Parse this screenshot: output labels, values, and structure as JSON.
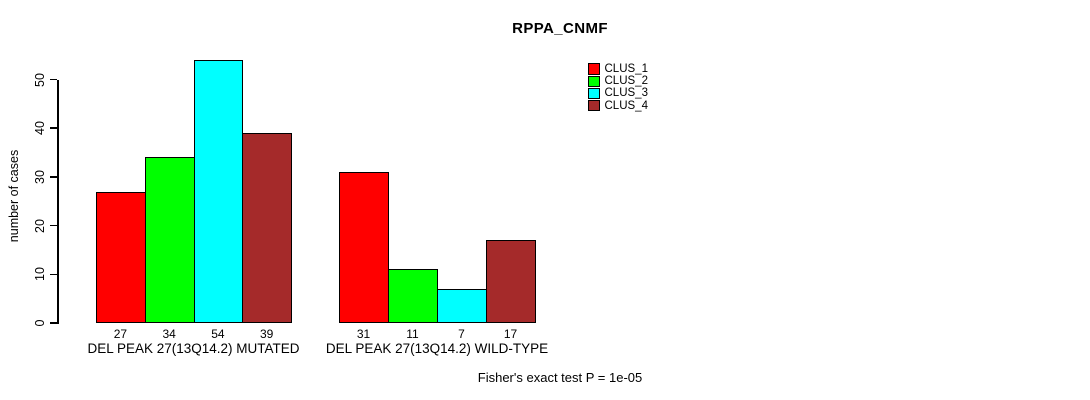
{
  "chart_data": {
    "type": "bar",
    "title": "RPPA_CNMF",
    "ylabel": "number of cases",
    "ylim": [
      0,
      55
    ],
    "yticks": [
      0,
      10,
      20,
      30,
      40,
      50
    ],
    "grid": false,
    "legend_position": "top-right",
    "categories": [
      "DEL PEAK 27(13Q14.2) MUTATED",
      "DEL PEAK 27(13Q14.2) WILD-TYPE"
    ],
    "series": [
      {
        "name": "CLUS_1",
        "color": "#FF0000",
        "values": [
          27,
          31
        ]
      },
      {
        "name": "CLUS_2",
        "color": "#00FF00",
        "values": [
          34,
          11
        ]
      },
      {
        "name": "CLUS_3",
        "color": "#00FFFF",
        "values": [
          54,
          7
        ]
      },
      {
        "name": "CLUS_4",
        "color": "#A52A2A",
        "values": [
          39,
          17
        ]
      }
    ],
    "bar_value_labels": [
      [
        27,
        34,
        54,
        39
      ],
      [
        31,
        11,
        7,
        17
      ]
    ],
    "annotation": "Fisher's exact test P = 1e-05"
  }
}
